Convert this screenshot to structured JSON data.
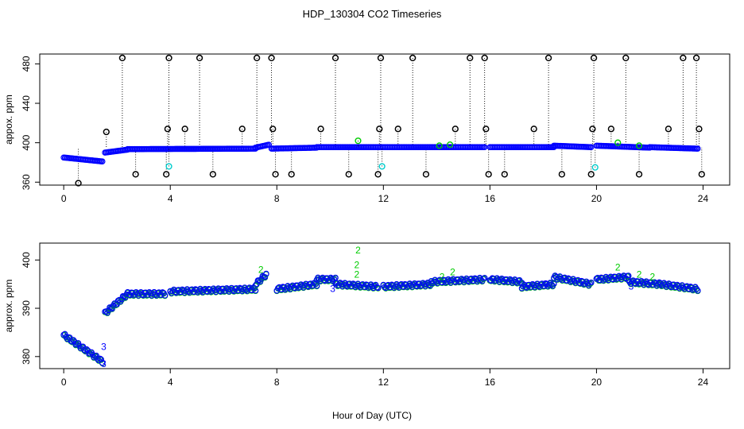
{
  "figure": {
    "title": "HDP_130304  CO2 Timeseries",
    "xlabel": "Hour of Day (UTC)"
  },
  "colors": {
    "axis": "#000000",
    "main_series": "#0000ff",
    "raw_series": "#00cc00",
    "flagged_spike": "#000000",
    "flagged_minor": "#00cccc"
  },
  "chart_data": [
    {
      "type": "scatter",
      "title": "",
      "xlabel": "",
      "ylabel": "appox. ppm",
      "xlim": [
        -0.9,
        25
      ],
      "ylim": [
        357,
        490
      ],
      "xticks": [
        0,
        4,
        8,
        12,
        16,
        20,
        24
      ],
      "yticks": [
        360,
        400,
        440,
        480
      ],
      "grid": false,
      "legend": "none",
      "baseline_segments": [
        {
          "x": [
            0.0,
            1.45
          ],
          "y0": 385,
          "y1": 381
        },
        {
          "x": [
            1.55,
            2.4
          ],
          "y0": 390,
          "y1": 393
        },
        {
          "x": [
            2.4,
            7.2
          ],
          "y0": 393.5,
          "y1": 394
        },
        {
          "x": [
            7.2,
            7.7
          ],
          "y0": 395,
          "y1": 398
        },
        {
          "x": [
            7.8,
            9.5
          ],
          "y0": 394,
          "y1": 395
        },
        {
          "x": [
            9.5,
            15.8
          ],
          "y0": 395.5,
          "y1": 395.5
        },
        {
          "x": [
            16.0,
            18.4
          ],
          "y0": 395.5,
          "y1": 395.5
        },
        {
          "x": [
            18.4,
            19.8
          ],
          "y0": 397,
          "y1": 395.5
        },
        {
          "x": [
            20.0,
            22.0
          ],
          "y0": 397,
          "y1": 395
        },
        {
          "x": [
            22.0,
            23.8
          ],
          "y0": 395.5,
          "y1": 394
        }
      ],
      "spikes": [
        {
          "x": 0.55,
          "y": 359
        },
        {
          "x": 1.6,
          "y": 411
        },
        {
          "x": 2.2,
          "y": 486
        },
        {
          "x": 2.7,
          "y": 368
        },
        {
          "x": 3.85,
          "y": 368
        },
        {
          "x": 3.9,
          "y": 414
        },
        {
          "x": 3.95,
          "y": 486
        },
        {
          "x": 4.55,
          "y": 414
        },
        {
          "x": 5.1,
          "y": 486
        },
        {
          "x": 5.6,
          "y": 368
        },
        {
          "x": 6.7,
          "y": 414
        },
        {
          "x": 7.25,
          "y": 486
        },
        {
          "x": 7.8,
          "y": 486
        },
        {
          "x": 7.85,
          "y": 414
        },
        {
          "x": 7.95,
          "y": 368
        },
        {
          "x": 8.55,
          "y": 368
        },
        {
          "x": 9.65,
          "y": 414
        },
        {
          "x": 10.2,
          "y": 486
        },
        {
          "x": 10.7,
          "y": 368
        },
        {
          "x": 11.8,
          "y": 368
        },
        {
          "x": 11.85,
          "y": 414
        },
        {
          "x": 11.9,
          "y": 486
        },
        {
          "x": 12.55,
          "y": 414
        },
        {
          "x": 13.1,
          "y": 486
        },
        {
          "x": 13.6,
          "y": 368
        },
        {
          "x": 14.7,
          "y": 414
        },
        {
          "x": 15.25,
          "y": 486
        },
        {
          "x": 15.8,
          "y": 486
        },
        {
          "x": 15.85,
          "y": 414
        },
        {
          "x": 15.95,
          "y": 368
        },
        {
          "x": 16.55,
          "y": 368
        },
        {
          "x": 17.65,
          "y": 414
        },
        {
          "x": 18.2,
          "y": 486
        },
        {
          "x": 18.7,
          "y": 368
        },
        {
          "x": 19.8,
          "y": 368
        },
        {
          "x": 19.85,
          "y": 414
        },
        {
          "x": 19.9,
          "y": 486
        },
        {
          "x": 20.55,
          "y": 414
        },
        {
          "x": 21.1,
          "y": 486
        },
        {
          "x": 21.6,
          "y": 368
        },
        {
          "x": 22.7,
          "y": 414
        },
        {
          "x": 23.25,
          "y": 486
        },
        {
          "x": 23.75,
          "y": 486
        },
        {
          "x": 23.85,
          "y": 414
        },
        {
          "x": 23.95,
          "y": 368
        }
      ],
      "minor_flags": [
        {
          "x": 3.95,
          "y": 376
        },
        {
          "x": 11.95,
          "y": 376
        },
        {
          "x": 19.95,
          "y": 375
        }
      ],
      "raw_marks": [
        {
          "x": 11.05,
          "y": 402
        },
        {
          "x": 14.1,
          "y": 397
        },
        {
          "x": 14.5,
          "y": 398
        },
        {
          "x": 20.8,
          "y": 400
        },
        {
          "x": 21.6,
          "y": 397
        }
      ]
    },
    {
      "type": "scatter",
      "title": "",
      "xlabel": "Hour of Day (UTC)",
      "ylabel": "approx. ppm",
      "xlim": [
        -0.9,
        25
      ],
      "ylim": [
        377.5,
        403.5
      ],
      "xticks": [
        0,
        4,
        8,
        12,
        16,
        20,
        24
      ],
      "yticks": [
        380,
        390,
        400
      ],
      "grid": false,
      "legend": "none",
      "baseline_segments": [
        {
          "x": [
            0.0,
            1.45
          ],
          "y0": 384.5,
          "y1": 379
        },
        {
          "x": [
            1.55,
            2.4
          ],
          "y0": 389,
          "y1": 393
        },
        {
          "x": [
            2.4,
            3.8
          ],
          "y0": 393,
          "y1": 393
        },
        {
          "x": [
            4.0,
            7.2
          ],
          "y0": 393.5,
          "y1": 394
        },
        {
          "x": [
            7.2,
            7.6
          ],
          "y0": 395,
          "y1": 397
        },
        {
          "x": [
            8.0,
            9.5
          ],
          "y0": 394,
          "y1": 395
        },
        {
          "x": [
            9.5,
            10.2
          ],
          "y0": 396,
          "y1": 396
        },
        {
          "x": [
            10.2,
            11.8
          ],
          "y0": 395,
          "y1": 394.5
        },
        {
          "x": [
            12.0,
            13.8
          ],
          "y0": 394.5,
          "y1": 395
        },
        {
          "x": [
            13.8,
            15.8
          ],
          "y0": 395.5,
          "y1": 396
        },
        {
          "x": [
            16.0,
            17.2
          ],
          "y0": 396,
          "y1": 395.5
        },
        {
          "x": [
            17.2,
            18.4
          ],
          "y0": 394.5,
          "y1": 395
        },
        {
          "x": [
            18.4,
            19.8
          ],
          "y0": 396.5,
          "y1": 395
        },
        {
          "x": [
            20.0,
            21.2
          ],
          "y0": 396,
          "y1": 396.5
        },
        {
          "x": [
            21.2,
            22.4
          ],
          "y0": 395.5,
          "y1": 395
        },
        {
          "x": [
            22.4,
            23.8
          ],
          "y0": 395,
          "y1": 394
        }
      ],
      "number_labels": [
        {
          "x": 11.05,
          "y": 402,
          "text": "2"
        },
        {
          "x": 11.0,
          "y": 399,
          "text": "2"
        },
        {
          "x": 11.0,
          "y": 397,
          "text": "2"
        },
        {
          "x": 7.4,
          "y": 398,
          "text": "2"
        },
        {
          "x": 14.2,
          "y": 396.5,
          "text": "2"
        },
        {
          "x": 14.6,
          "y": 397.5,
          "text": "2"
        },
        {
          "x": 20.8,
          "y": 398.5,
          "text": "2"
        },
        {
          "x": 21.6,
          "y": 397,
          "text": "2"
        },
        {
          "x": 22.1,
          "y": 396.5,
          "text": "2"
        },
        {
          "x": 1.5,
          "y": 382,
          "text": "3"
        },
        {
          "x": 1.5,
          "y": 378.5,
          "text": "3"
        },
        {
          "x": 10.1,
          "y": 394,
          "text": "3"
        },
        {
          "x": 18.1,
          "y": 395,
          "text": "3"
        },
        {
          "x": 21.3,
          "y": 394.5,
          "text": "3"
        }
      ]
    }
  ]
}
